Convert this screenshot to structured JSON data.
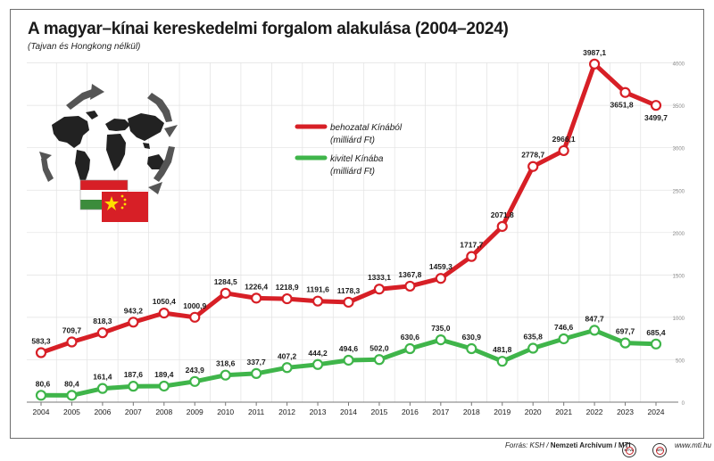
{
  "header": {
    "title": "A magyar–kínai kereskedelmi forgalom alakulása (2004–2024)",
    "subtitle": "(Tajvan és Hongkong nélkül)"
  },
  "footer": {
    "source_prefix": "Forrás: KSH / ",
    "source_archive": "Nemzeti Archívum / MTI",
    "badge1": "MTVA",
    "badge2": "MTI",
    "website": "www.mti.hu"
  },
  "colors": {
    "import": "#d71f26",
    "export": "#3fb54a",
    "grid": "#e2e2e2",
    "axis": "#777777",
    "text": "#1a1a1a"
  },
  "chart_data": {
    "type": "line",
    "title": "A magyar–kínai kereskedelmi forgalom alakulása (2004–2024)",
    "subtitle": "(Tajvan és Hongkong nélkül)",
    "x": [
      "2004",
      "2005",
      "2006",
      "2007",
      "2008",
      "2009",
      "2010",
      "2011",
      "2012",
      "2013",
      "2014",
      "2015",
      "2016",
      "2017",
      "2018",
      "2019",
      "2020",
      "2021",
      "2022",
      "2023",
      "2024"
    ],
    "ylim": [
      0,
      4000
    ],
    "yticks": [
      0,
      500,
      1000,
      1500,
      2000,
      2500,
      3000,
      3500,
      4000
    ],
    "ytick_labels": [
      "0",
      "500",
      "1000",
      "1500",
      "2000",
      "2500",
      "3000",
      "3500",
      "4000"
    ],
    "grid": true,
    "series": [
      {
        "name": "behozatal Kínából",
        "unit": "(milliárd Ft)",
        "color": "#d71f26",
        "values": [
          583.3,
          709.7,
          818.3,
          943.2,
          1050.4,
          1000.9,
          1284.5,
          1226.4,
          1218.9,
          1191.6,
          1178.3,
          1333.1,
          1367.8,
          1459.3,
          1717.7,
          2071.8,
          2778.7,
          2966.1,
          3987.1,
          3651.8,
          3499.7
        ],
        "labels": [
          "583,3",
          "709,7",
          "818,3",
          "943,2",
          "1050,4",
          "1000,9",
          "1284,5",
          "1226,4",
          "1218,9",
          "1191,6",
          "1178,3",
          "1333,1",
          "1367,8",
          "1459,3",
          "1717,7",
          "2071,8",
          "2778,7",
          "2966,1",
          "3987,1",
          "3651,8",
          "3499,7"
        ]
      },
      {
        "name": "kivitel Kínába",
        "unit": "(milliárd Ft)",
        "color": "#3fb54a",
        "values": [
          80.6,
          80.4,
          161.4,
          187.6,
          189.4,
          243.9,
          318.6,
          337.7,
          407.2,
          444.2,
          494.6,
          502.0,
          630.6,
          735.0,
          630.9,
          481.8,
          635.8,
          746.6,
          847.7,
          697.7,
          685.4
        ],
        "labels": [
          "80,6",
          "80,4",
          "161,4",
          "187,6",
          "189,4",
          "243,9",
          "318,6",
          "337,7",
          "407,2",
          "444,2",
          "494,6",
          "502,0",
          "630,6",
          "735,0",
          "630,9",
          "481,8",
          "635,8",
          "746,6",
          "847,7",
          "697,7",
          "685,4"
        ]
      }
    ],
    "legend_position": "upper-middle-left"
  }
}
